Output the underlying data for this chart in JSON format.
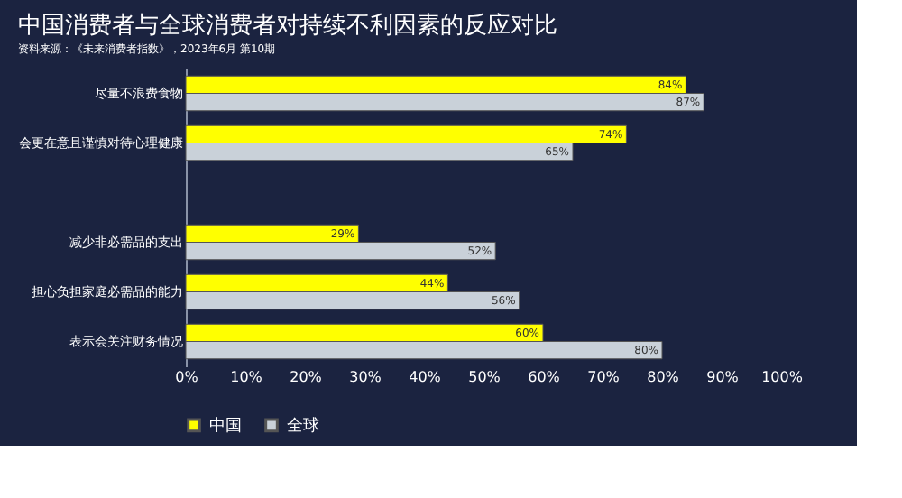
{
  "chart_data": {
    "type": "bar",
    "orientation": "horizontal",
    "title": "中国消费者与全球消费者对持续不利因素的反应对比",
    "categories": [
      "尽量不浪费食物",
      "会更在意且谨慎对待心理健康",
      null,
      "减少非必需品的支出",
      "担心负担家庭必需品的能力",
      "表示会关注财务情况"
    ],
    "series": [
      {
        "name": "中国",
        "color": "#ffff00",
        "values": [
          84,
          74,
          null,
          29,
          44,
          60
        ],
        "value_labels": [
          "84%",
          "74%",
          null,
          "29%",
          "44%",
          "60%"
        ]
      },
      {
        "name": "全球",
        "color": "#c9d1d9",
        "values": [
          87,
          65,
          null,
          52,
          56,
          80
        ],
        "value_labels": [
          "87%",
          "65%",
          null,
          "52%",
          "56%",
          "80%"
        ]
      }
    ],
    "xlim": [
      0,
      100
    ],
    "xticks": [
      {
        "value": 0,
        "label": "0%"
      },
      {
        "value": 10,
        "label": "10%"
      },
      {
        "value": 20,
        "label": "20%"
      },
      {
        "value": 30,
        "label": "30%"
      },
      {
        "value": 40,
        "label": "40%"
      },
      {
        "value": 50,
        "label": "50%"
      },
      {
        "value": 60,
        "label": "60%"
      },
      {
        "value": 70,
        "label": "70%"
      },
      {
        "value": 80,
        "label": "80%"
      },
      {
        "value": 90,
        "label": "90%"
      },
      {
        "value": 100,
        "label": "100%"
      }
    ],
    "legend": "bottom",
    "annotations": [
      "资料来源：《未来消费者指数》，2023年6月 第10期"
    ]
  }
}
